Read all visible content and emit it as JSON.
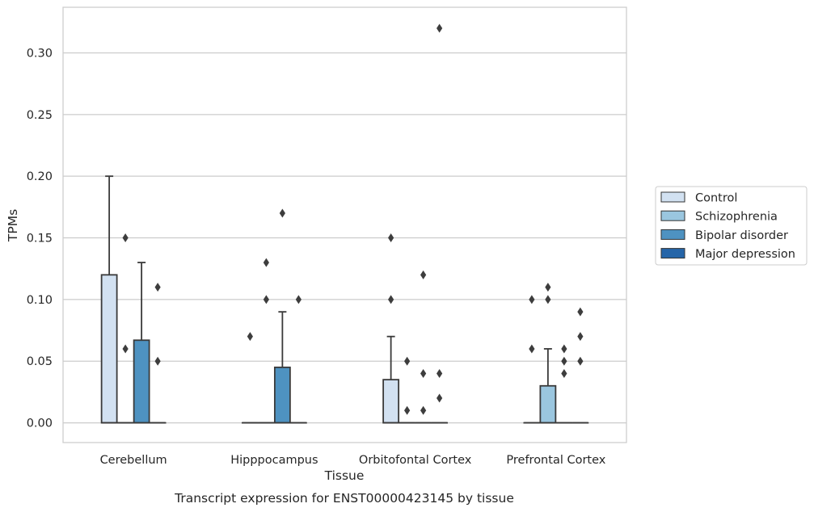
{
  "chart_data": {
    "type": "box",
    "caption": "Transcript expression for ENST00000423145 by tissue",
    "xlabel": "Tissue",
    "ylabel": "TPMs",
    "ylim": [
      -0.016,
      0.337
    ],
    "yticks": [
      "0.00",
      "0.05",
      "0.10",
      "0.15",
      "0.20",
      "0.25",
      "0.30"
    ],
    "ytick_values": [
      0,
      0.05,
      0.1,
      0.15,
      0.2,
      0.25,
      0.3
    ],
    "grid": "horizontal",
    "legend_position": "right",
    "categories": [
      "Cerebellum",
      "Hipppocampus",
      "Orbitofontal Cortex",
      "Prefrontal Cortex"
    ],
    "series": [
      {
        "name": "Control",
        "color": "#d2e1f1",
        "boxes": [
          {
            "q1": 0,
            "median": 0,
            "q3": 0.12,
            "whisker_low": 0,
            "whisker_high": 0.2,
            "outliers": []
          },
          {
            "q1": 0,
            "median": 0,
            "q3": 0,
            "whisker_low": 0,
            "whisker_high": 0,
            "outliers": [
              0.07
            ]
          },
          {
            "q1": 0,
            "median": 0,
            "q3": 0.035,
            "whisker_low": 0,
            "whisker_high": 0.07,
            "outliers": [
              0.1,
              0.15
            ]
          },
          {
            "q1": 0,
            "median": 0,
            "q3": 0,
            "whisker_low": 0,
            "whisker_high": 0,
            "outliers": [
              0.06,
              0.1
            ]
          }
        ]
      },
      {
        "name": "Schizophrenia",
        "color": "#9ac6df",
        "boxes": [
          {
            "q1": 0,
            "median": 0,
            "q3": 0,
            "whisker_low": 0,
            "whisker_high": 0,
            "outliers": [
              0.06,
              0.15
            ]
          },
          {
            "q1": 0,
            "median": 0,
            "q3": 0,
            "whisker_low": 0,
            "whisker_high": 0,
            "outliers": [
              0.1,
              0.13
            ]
          },
          {
            "q1": 0,
            "median": 0,
            "q3": 0,
            "whisker_low": 0,
            "whisker_high": 0,
            "outliers": [
              0.01,
              0.05
            ]
          },
          {
            "q1": 0,
            "median": 0,
            "q3": 0.03,
            "whisker_low": 0,
            "whisker_high": 0.06,
            "outliers": [
              0.1,
              0.11
            ]
          }
        ]
      },
      {
        "name": "Bipolar disorder",
        "color": "#4e92c1",
        "boxes": [
          {
            "q1": 0,
            "median": 0,
            "q3": 0.067,
            "whisker_low": 0,
            "whisker_high": 0.13,
            "outliers": []
          },
          {
            "q1": 0,
            "median": 0,
            "q3": 0.045,
            "whisker_low": 0,
            "whisker_high": 0.09,
            "outliers": [
              0.17
            ]
          },
          {
            "q1": 0,
            "median": 0,
            "q3": 0,
            "whisker_low": 0,
            "whisker_high": 0,
            "outliers": [
              0.01,
              0.04,
              0.12
            ]
          },
          {
            "q1": 0,
            "median": 0,
            "q3": 0,
            "whisker_low": 0,
            "whisker_high": 0,
            "outliers": [
              0.04,
              0.05,
              0.06
            ]
          }
        ]
      },
      {
        "name": "Major depression",
        "color": "#2565a8",
        "boxes": [
          {
            "q1": 0,
            "median": 0,
            "q3": 0,
            "whisker_low": 0,
            "whisker_high": 0,
            "outliers": [
              0.05,
              0.11
            ]
          },
          {
            "q1": 0,
            "median": 0,
            "q3": 0,
            "whisker_low": 0,
            "whisker_high": 0,
            "outliers": [
              0.1
            ]
          },
          {
            "q1": 0,
            "median": 0,
            "q3": 0,
            "whisker_low": 0,
            "whisker_high": 0,
            "outliers": [
              0.02,
              0.04,
              0.32
            ]
          },
          {
            "q1": 0,
            "median": 0,
            "q3": 0,
            "whisker_low": 0,
            "whisker_high": 0,
            "outliers": [
              0.05,
              0.07,
              0.09
            ]
          }
        ]
      }
    ]
  }
}
